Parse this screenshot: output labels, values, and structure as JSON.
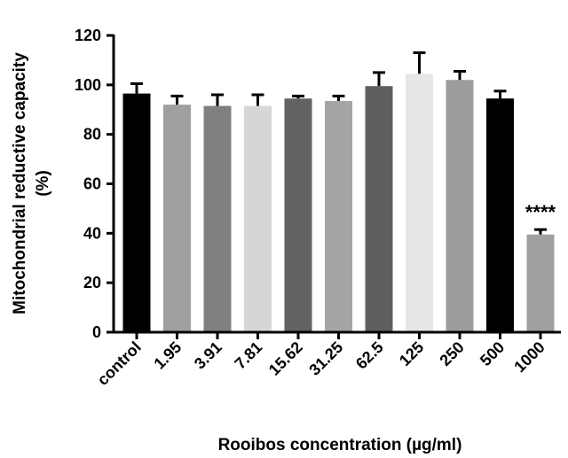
{
  "chart_data": {
    "type": "bar",
    "categories": [
      "control",
      "1.95",
      "3.91",
      "7.81",
      "15.62",
      "31.25",
      "62.5",
      "125",
      "250",
      "500",
      "1000"
    ],
    "values": [
      96.5,
      92,
      91.5,
      91.5,
      94.5,
      93.5,
      99.5,
      104.5,
      102,
      94.5,
      39.5
    ],
    "errors": [
      4,
      3.5,
      4.5,
      4.5,
      1,
      2,
      5.5,
      8.5,
      3.5,
      3,
      2
    ],
    "colors": [
      "#000000",
      "#a0a0a2",
      "#808080",
      "#d6d6d6",
      "#626262",
      "#a5a5a5",
      "#5f5f5f",
      "#e6e6e6",
      "#9c9c9c",
      "#000000",
      "#a0a0a2"
    ],
    "ylabel_line1": "Mitochondrial reductive capacity",
    "ylabel_line2": "(%)",
    "xlabel": "Rooibos concentration (µg/ml)",
    "ylim": [
      0,
      120
    ],
    "yticks": [
      0,
      20,
      40,
      60,
      80,
      100,
      120
    ],
    "grid": false,
    "annotations": [
      {
        "category": "1000",
        "text": "****"
      }
    ]
  }
}
